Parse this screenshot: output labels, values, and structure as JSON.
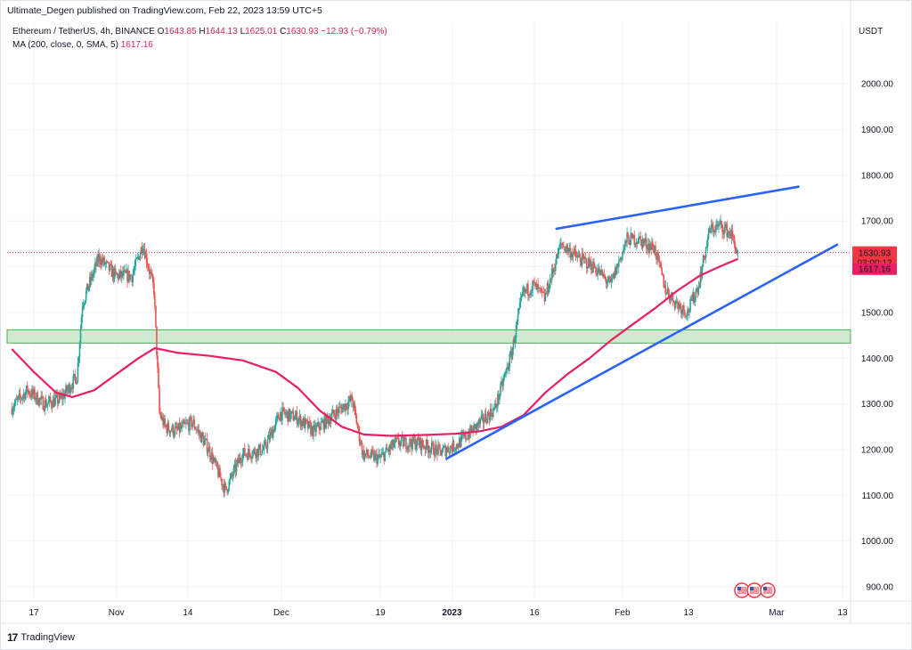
{
  "header": {
    "published": "Ultimate_Degen published on TradingView.com, Feb 22, 2023 13:59 UTC+5"
  },
  "legend": {
    "symbol": "Ethereum / TetherUS, 4h, BINANCE",
    "o_label": "O",
    "o_value": "1643.85",
    "h_label": "H",
    "h_value": "1644.13",
    "l_label": "L",
    "l_value": "1625.01",
    "c_label": "C",
    "c_value": "1630.93",
    "change": "−12.93 (−0.79%)",
    "ma_label": "MA (200, close, 0, SMA, 5)",
    "ma_value": "1617.16"
  },
  "currency": "USDT",
  "brand": {
    "logo": "17",
    "name": "TradingView"
  },
  "price_tags": {
    "last": "1630.93",
    "countdown": "03:00:12",
    "ma": "1617.16"
  },
  "colors": {
    "up": "#26a69a",
    "down": "#ef5350",
    "ma": "#e91e63",
    "trendline": "#2962ff",
    "zone_fill": "#c8e6c9",
    "zone_border": "#4caf50",
    "tag_red": "#f23645",
    "tag_ma": "#e91e63"
  },
  "chart_data": {
    "type": "candlestick",
    "symbol": "Ethereum / TetherUS",
    "interval": "4h",
    "exchange": "BINANCE",
    "ylim": [
      870,
      2120
    ],
    "y_ticks": [
      900,
      1000,
      1100,
      1200,
      1300,
      1400,
      1500,
      1600,
      1700,
      1800,
      1900,
      2000
    ],
    "y_tick_labels": [
      "900.00",
      "1000.00",
      "1100.00",
      "1200.00",
      "1300.00",
      "1400.00",
      "1500.00",
      "1600.00",
      "1700.00",
      "1800.00",
      "1900.00",
      "2000.00"
    ],
    "x_ticks": [
      {
        "date": "2022-10-17",
        "label": "17"
      },
      {
        "date": "2022-11-01",
        "label": "Nov"
      },
      {
        "date": "2022-11-14",
        "label": "14"
      },
      {
        "date": "2022-12-01",
        "label": "Dec"
      },
      {
        "date": "2022-12-19",
        "label": "19"
      },
      {
        "date": "2023-01-01",
        "label": "2023"
      },
      {
        "date": "2023-01-16",
        "label": "16"
      },
      {
        "date": "2023-02-01",
        "label": "Feb"
      },
      {
        "date": "2023-02-13",
        "label": "13"
      },
      {
        "date": "2023-03-01",
        "label": "Mar"
      },
      {
        "date": "2023-03-13",
        "label": "13"
      }
    ],
    "price_path": [
      [
        "2022-10-13",
        1290
      ],
      [
        "2022-10-16",
        1330
      ],
      [
        "2022-10-19",
        1300
      ],
      [
        "2022-10-22",
        1310
      ],
      [
        "2022-10-25",
        1360
      ],
      [
        "2022-10-26",
        1520
      ],
      [
        "2022-10-29",
        1620
      ],
      [
        "2022-11-01",
        1580
      ],
      [
        "2022-11-04",
        1580
      ],
      [
        "2022-11-06",
        1650
      ],
      [
        "2022-11-08",
        1550
      ],
      [
        "2022-11-09",
        1280
      ],
      [
        "2022-11-10",
        1250
      ],
      [
        "2022-11-12",
        1240
      ],
      [
        "2022-11-15",
        1260
      ],
      [
        "2022-11-18",
        1200
      ],
      [
        "2022-11-21",
        1110
      ],
      [
        "2022-11-24",
        1190
      ],
      [
        "2022-11-28",
        1200
      ],
      [
        "2022-12-01",
        1280
      ],
      [
        "2022-12-04",
        1270
      ],
      [
        "2022-12-07",
        1240
      ],
      [
        "2022-12-10",
        1270
      ],
      [
        "2022-12-14",
        1310
      ],
      [
        "2022-12-16",
        1190
      ],
      [
        "2022-12-19",
        1180
      ],
      [
        "2022-12-22",
        1215
      ],
      [
        "2022-12-26",
        1215
      ],
      [
        "2022-12-30",
        1195
      ],
      [
        "2023-01-02",
        1210
      ],
      [
        "2023-01-06",
        1255
      ],
      [
        "2023-01-09",
        1290
      ],
      [
        "2023-01-12",
        1410
      ],
      [
        "2023-01-14",
        1540
      ],
      [
        "2023-01-16",
        1560
      ],
      [
        "2023-01-18",
        1530
      ],
      [
        "2023-01-21",
        1650
      ],
      [
        "2023-01-24",
        1620
      ],
      [
        "2023-01-27",
        1600
      ],
      [
        "2023-01-30",
        1560
      ],
      [
        "2023-02-02",
        1660
      ],
      [
        "2023-02-04",
        1660
      ],
      [
        "2023-02-07",
        1640
      ],
      [
        "2023-02-09",
        1550
      ],
      [
        "2023-02-11",
        1520
      ],
      [
        "2023-02-13",
        1500
      ],
      [
        "2023-02-15",
        1560
      ],
      [
        "2023-02-17",
        1680
      ],
      [
        "2023-02-19",
        1690
      ],
      [
        "2023-02-21",
        1670
      ],
      [
        "2023-02-22",
        1631
      ]
    ],
    "ma_200": [
      [
        "2022-10-13",
        1420
      ],
      [
        "2022-10-17",
        1370
      ],
      [
        "2022-10-21",
        1325
      ],
      [
        "2022-10-24",
        1315
      ],
      [
        "2022-10-28",
        1330
      ],
      [
        "2022-11-01",
        1365
      ],
      [
        "2022-11-05",
        1400
      ],
      [
        "2022-11-08",
        1422
      ],
      [
        "2022-11-12",
        1412
      ],
      [
        "2022-11-18",
        1405
      ],
      [
        "2022-11-24",
        1395
      ],
      [
        "2022-11-30",
        1370
      ],
      [
        "2022-12-04",
        1335
      ],
      [
        "2022-12-08",
        1285
      ],
      [
        "2022-12-12",
        1250
      ],
      [
        "2022-12-16",
        1233
      ],
      [
        "2022-12-21",
        1230
      ],
      [
        "2022-12-27",
        1232
      ],
      [
        "2023-01-02",
        1235
      ],
      [
        "2023-01-06",
        1240
      ],
      [
        "2023-01-10",
        1250
      ],
      [
        "2023-01-14",
        1275
      ],
      [
        "2023-01-18",
        1325
      ],
      [
        "2023-01-22",
        1365
      ],
      [
        "2023-01-26",
        1400
      ],
      [
        "2023-01-30",
        1440
      ],
      [
        "2023-02-03",
        1475
      ],
      [
        "2023-02-07",
        1510
      ],
      [
        "2023-02-11",
        1548
      ],
      [
        "2023-02-15",
        1580
      ],
      [
        "2023-02-19",
        1602
      ],
      [
        "2023-02-22",
        1617
      ]
    ],
    "last_price": 1630.93,
    "ma_last": 1617.16,
    "support_zone": [
      1433,
      1462
    ],
    "trendlines": [
      {
        "from": [
          "2023-01-20",
          1683
        ],
        "to": [
          "2023-03-05",
          1775
        ]
      },
      {
        "from": [
          "2022-12-31",
          1180
        ],
        "to": [
          "2023-03-12",
          1648
        ]
      }
    ]
  }
}
